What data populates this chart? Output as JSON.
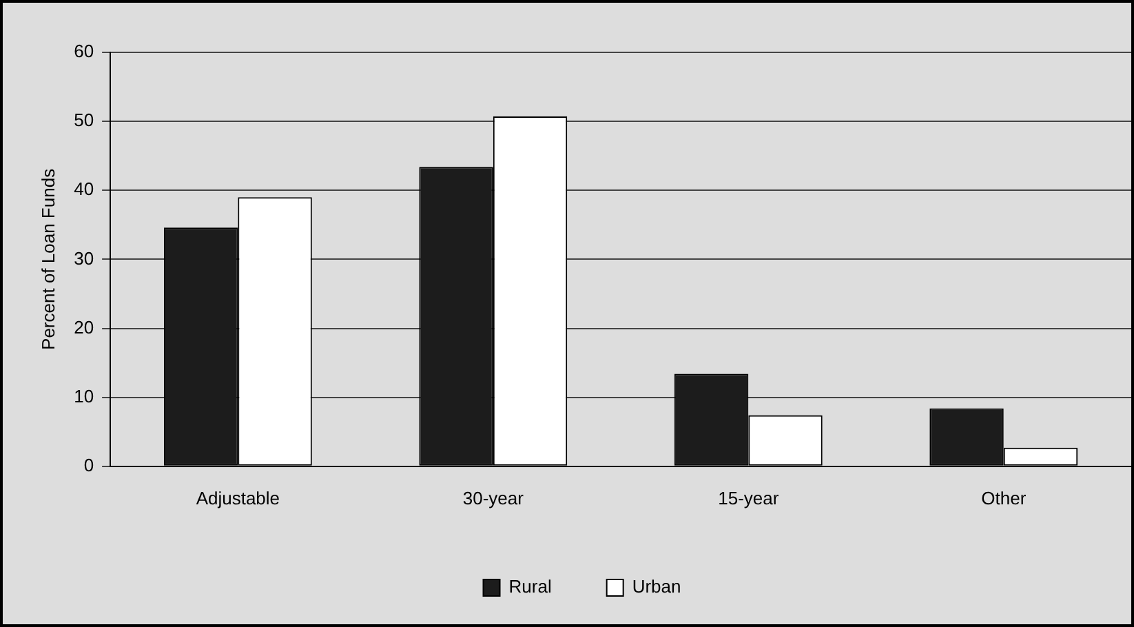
{
  "chart_data": {
    "type": "bar",
    "ylabel": "Percent of Loan Funds",
    "categories": [
      "Adjustable",
      "30-year",
      "15-year",
      "Other"
    ],
    "series": [
      {
        "name": "Rural",
        "color": "#1c1c1c",
        "values": [
          34.6,
          43.4,
          13.4,
          8.4
        ]
      },
      {
        "name": "Urban",
        "color": "#ffffff",
        "values": [
          39.0,
          50.7,
          7.4,
          2.7
        ]
      }
    ],
    "ylim": [
      0,
      60
    ],
    "yticks": [
      0,
      10,
      20,
      30,
      40,
      50,
      60
    ],
    "grid": "y",
    "legend": "bottom"
  }
}
